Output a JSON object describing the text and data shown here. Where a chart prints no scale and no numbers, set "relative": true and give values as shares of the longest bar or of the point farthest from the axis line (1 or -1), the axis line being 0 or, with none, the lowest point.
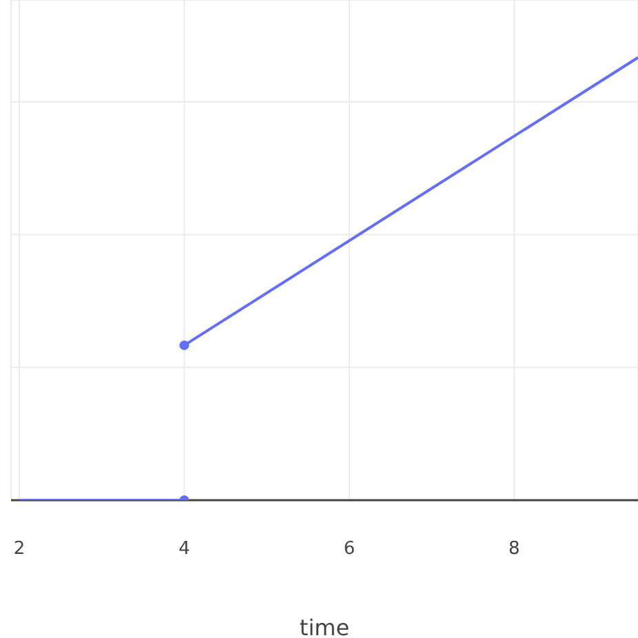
{
  "chart_data": {
    "type": "line",
    "xlabel": "time",
    "relative": true,
    "xlim": [
      1.9,
      9.5
    ],
    "xticks": [
      2,
      4,
      6,
      8
    ],
    "grid": true,
    "legend": false,
    "marker": "none",
    "series": [
      {
        "color": "#636efa",
        "x": [
          2,
          4
        ],
        "values": [
          0,
          0
        ]
      },
      {
        "color": "#636efa",
        "x": [
          4,
          9.5
        ],
        "values": [
          0.35,
          1
        ]
      },
      {
        "type": "scatter",
        "color": "#636efa",
        "x": [
          4
        ],
        "values": [
          0
        ],
        "marker": "circle"
      },
      {
        "type": "scatter",
        "color": "#636efa",
        "x": [
          4
        ],
        "values": [
          0.35
        ],
        "marker": "circle"
      }
    ]
  }
}
